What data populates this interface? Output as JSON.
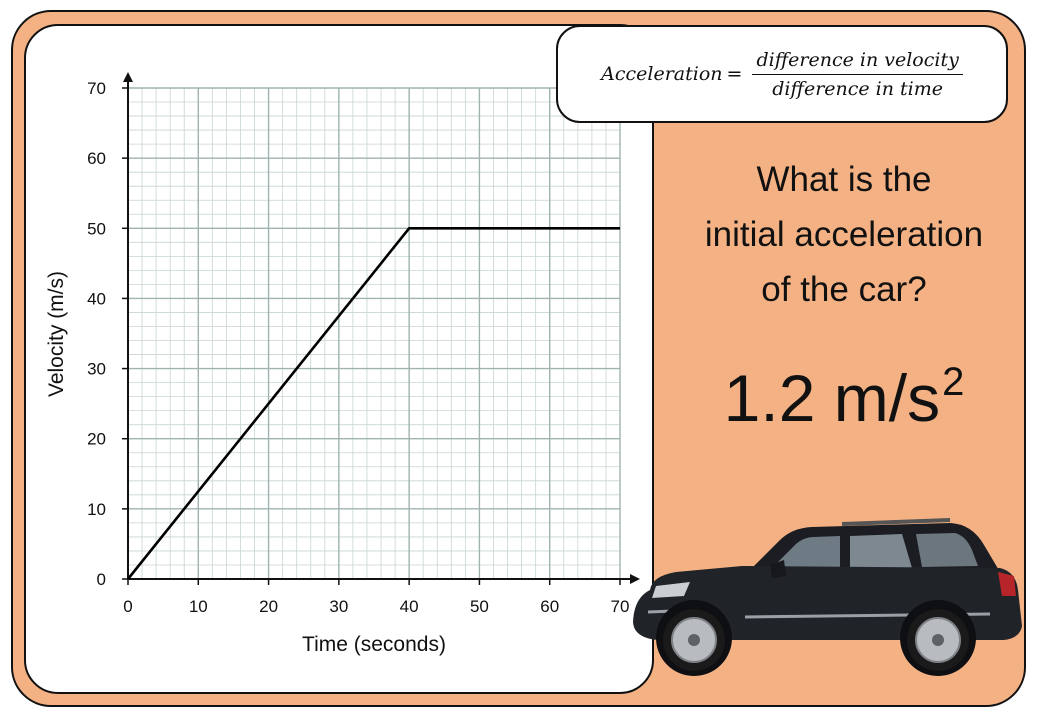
{
  "formula": {
    "lhs": "Acceleration",
    "equals": "=",
    "numerator": "difference in velocity",
    "denominator": "difference in time"
  },
  "question_lines": [
    "What is the",
    "initial acceleration",
    "of the car?"
  ],
  "answer": {
    "value": "1.2 m/s",
    "superscript": "2"
  },
  "colors": {
    "background": "#f4b183",
    "grid": "#c8d5d2",
    "line": "#000000"
  },
  "chart_data": {
    "type": "line",
    "xlabel": "Time  (seconds)",
    "ylabel": "Velocity  (m/s)",
    "xlim": [
      0,
      70
    ],
    "ylim": [
      0,
      70
    ],
    "xticks": [
      0,
      10,
      20,
      30,
      40,
      50,
      60,
      70
    ],
    "yticks": [
      0,
      10,
      20,
      30,
      40,
      50,
      60,
      70
    ],
    "minor_step": 2,
    "grid": true,
    "series": [
      {
        "x": [
          0,
          40,
          70
        ],
        "y": [
          0,
          50,
          50
        ]
      }
    ]
  },
  "illustration": {
    "icon": "car-icon"
  }
}
